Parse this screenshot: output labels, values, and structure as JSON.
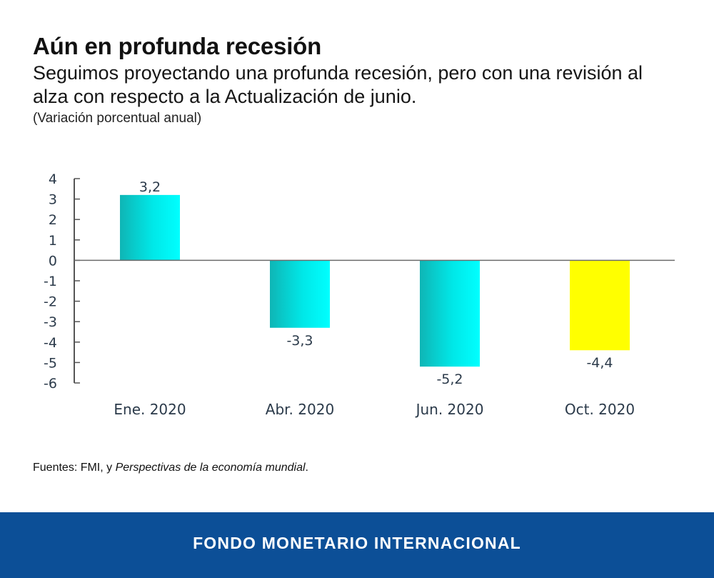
{
  "header": {
    "title": "Aún en profunda recesión",
    "subtitle": "Seguimos proyectando una profunda recesión, pero con una revisión al alza con respecto a la Actualización de junio.",
    "units": "(Variación porcentual anual)"
  },
  "colors": {
    "teal_dark": "#0fb5b5",
    "teal_light": "#00ffff",
    "highlight": "#ffff00",
    "axis": "#555555",
    "footer_bg": "#0c4f97"
  },
  "chart_data": {
    "type": "bar",
    "title": "Aún en profunda recesión",
    "xlabel": "",
    "ylabel": "Variación porcentual anual",
    "categories": [
      "Ene. 2020",
      "Abr. 2020",
      "Jun. 2020",
      "Oct. 2020"
    ],
    "values": [
      3.2,
      -3.3,
      -5.2,
      -4.4
    ],
    "value_labels": [
      "3,2",
      "-3,3",
      "-5,2",
      "-4,4"
    ],
    "highlighted": [
      false,
      false,
      false,
      true
    ],
    "ylim": [
      -6,
      4
    ],
    "yticks": [
      4,
      3,
      2,
      1,
      0,
      -1,
      -2,
      -3,
      -4,
      -5,
      -6
    ],
    "ytick_labels": [
      "4",
      "3",
      "2",
      "1",
      "0",
      "-1",
      "-2",
      "-3",
      "-4",
      "-5",
      "-6"
    ],
    "grid": false,
    "legend": "none"
  },
  "source": {
    "prefix": "Fuentes: FMI, y ",
    "italic": "Perspectivas de la economía mundial",
    "suffix": "."
  },
  "footer": {
    "org_name": "FONDO MONETARIO INTERNACIONAL"
  }
}
